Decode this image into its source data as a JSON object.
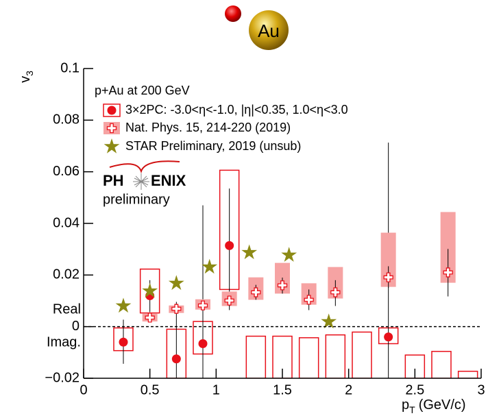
{
  "chart_data": {
    "type": "errorbox",
    "logo_text": "Au",
    "ylabel": {
      "main": "v",
      "sub": "3"
    },
    "xlabel": {
      "main": "p",
      "sub": "T",
      "unit": "(GeV/c)"
    },
    "legend_title": "p+Au at 200 GeV",
    "experiment": {
      "left": "PH",
      "right": "ENIX",
      "status": "preliminary"
    },
    "zero_labels": {
      "above": "Real",
      "below": "Imag."
    },
    "xlim": [
      0,
      3
    ],
    "ylim": [
      -0.02,
      0.1
    ],
    "xticks": [
      0,
      0.5,
      1,
      1.5,
      2,
      2.5,
      3
    ],
    "yticks": [
      {
        "value": -0.02,
        "label": "−0.02"
      },
      0,
      0.02,
      0.04,
      0.06,
      0.08,
      0.1
    ],
    "zero_line": "dashed",
    "series": [
      {
        "name": "3×2PC: -3.0<η<-1.0, |η|<0.35, 1.0<η<3.0",
        "color": "#e8101a",
        "marker": "circle",
        "box": "open",
        "x": [
          0.3,
          0.5,
          0.7,
          0.9,
          1.1,
          1.3,
          1.5,
          1.7,
          1.9,
          2.1,
          2.3,
          2.5,
          2.7,
          2.9
        ],
        "values": [
          -0.006,
          0.012,
          -0.0125,
          -0.0066,
          0.0314,
          null,
          null,
          null,
          null,
          null,
          -0.004,
          null,
          null,
          null
        ],
        "stat_low": [
          -0.0144,
          0.0056,
          -0.02,
          -0.02,
          0.0064,
          null,
          null,
          null,
          null,
          null,
          -0.02,
          null,
          null,
          null
        ],
        "stat_high": [
          0.0027,
          0.018,
          0.0096,
          0.047,
          0.0535,
          null,
          null,
          null,
          null,
          null,
          0.0713,
          null,
          null,
          null
        ],
        "sys_low": [
          -0.0093,
          0.0053,
          -0.02,
          -0.0106,
          0.0144,
          -0.02,
          -0.02,
          -0.02,
          -0.02,
          -0.02,
          -0.0066,
          -0.02,
          -0.02,
          -0.02
        ],
        "sys_high": [
          -0.0005,
          0.0223,
          -0.001,
          0.002,
          0.0606,
          -0.0037,
          -0.0037,
          -0.0043,
          -0.0032,
          -0.0021,
          -0.0005,
          -0.011,
          -0.0096,
          -0.0173
        ]
      },
      {
        "name": "Nat. Phys. 15, 214-220 (2019)",
        "color": "#e8101a",
        "box_color": "#f6a3a3",
        "marker": "cross",
        "box": "filled",
        "x": [
          0.5,
          0.7,
          0.9,
          1.1,
          1.3,
          1.5,
          1.7,
          1.9,
          2.3,
          2.75
        ],
        "values": [
          0.0035,
          0.0069,
          0.0082,
          0.0101,
          0.0133,
          0.016,
          0.0104,
          0.0133,
          0.0191,
          0.021
        ],
        "stat_low": [
          0.0025,
          0.006,
          0.007,
          0.0079,
          0.0104,
          0.0128,
          0.0064,
          0.008,
          0.015,
          0.0117
        ],
        "stat_high": [
          0.0045,
          0.0075,
          0.0095,
          0.012,
          0.0162,
          0.019,
          0.0144,
          0.018,
          0.0234,
          0.0301
        ],
        "sys_low": [
          0.002,
          0.0053,
          0.0066,
          0.008,
          0.0104,
          0.0128,
          0.0085,
          0.0109,
          0.0154,
          0.017
        ],
        "sys_high": [
          0.005,
          0.0082,
          0.0106,
          0.0136,
          0.0191,
          0.0247,
          0.0168,
          0.0231,
          0.0364,
          0.0444
        ]
      },
      {
        "name": "STAR Preliminary, 2019 (unsub)",
        "color": "#8c8a14",
        "marker": "star",
        "x": [
          0.3,
          0.5,
          0.7,
          0.95,
          1.25,
          1.55,
          1.85
        ],
        "values": [
          0.008,
          0.0138,
          0.0168,
          0.0231,
          0.0287,
          0.0277,
          0.0019
        ]
      }
    ]
  }
}
